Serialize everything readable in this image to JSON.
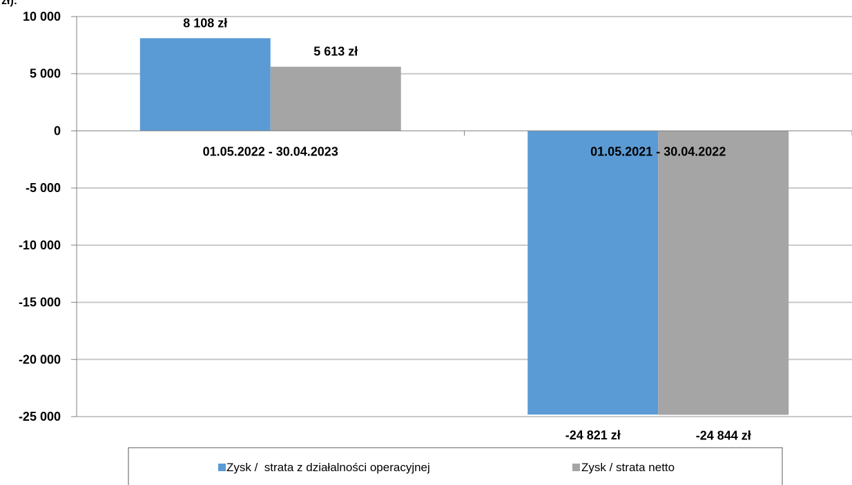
{
  "chart_data": {
    "type": "bar",
    "unit_label": "zł):",
    "categories": [
      "01.05.2022 - 30.04.2023",
      "01.05.2021 - 30.04.2022"
    ],
    "series": [
      {
        "name": "Zysk /  strata z działalności operacyjnej",
        "values": [
          8108,
          -24821
        ],
        "labels": [
          "8 108 zł",
          "-24 821 zł"
        ],
        "color": "#5b9bd5"
      },
      {
        "name": "Zysk / strata netto",
        "values": [
          5613,
          -24844
        ],
        "labels": [
          "5 613 zł",
          "-24 844 zł"
        ],
        "color": "#a5a5a5"
      }
    ],
    "ylim": [
      -25000,
      10000
    ],
    "yticks": [
      10000,
      5000,
      0,
      -5000,
      -10000,
      -15000,
      -20000,
      -25000
    ],
    "ytick_labels": [
      "10 000",
      "5 000",
      "0",
      "-5 000",
      "-10 000",
      "-15 000",
      "-20 000",
      "-25 000"
    ],
    "grid": true,
    "legend_position": "bottom"
  }
}
